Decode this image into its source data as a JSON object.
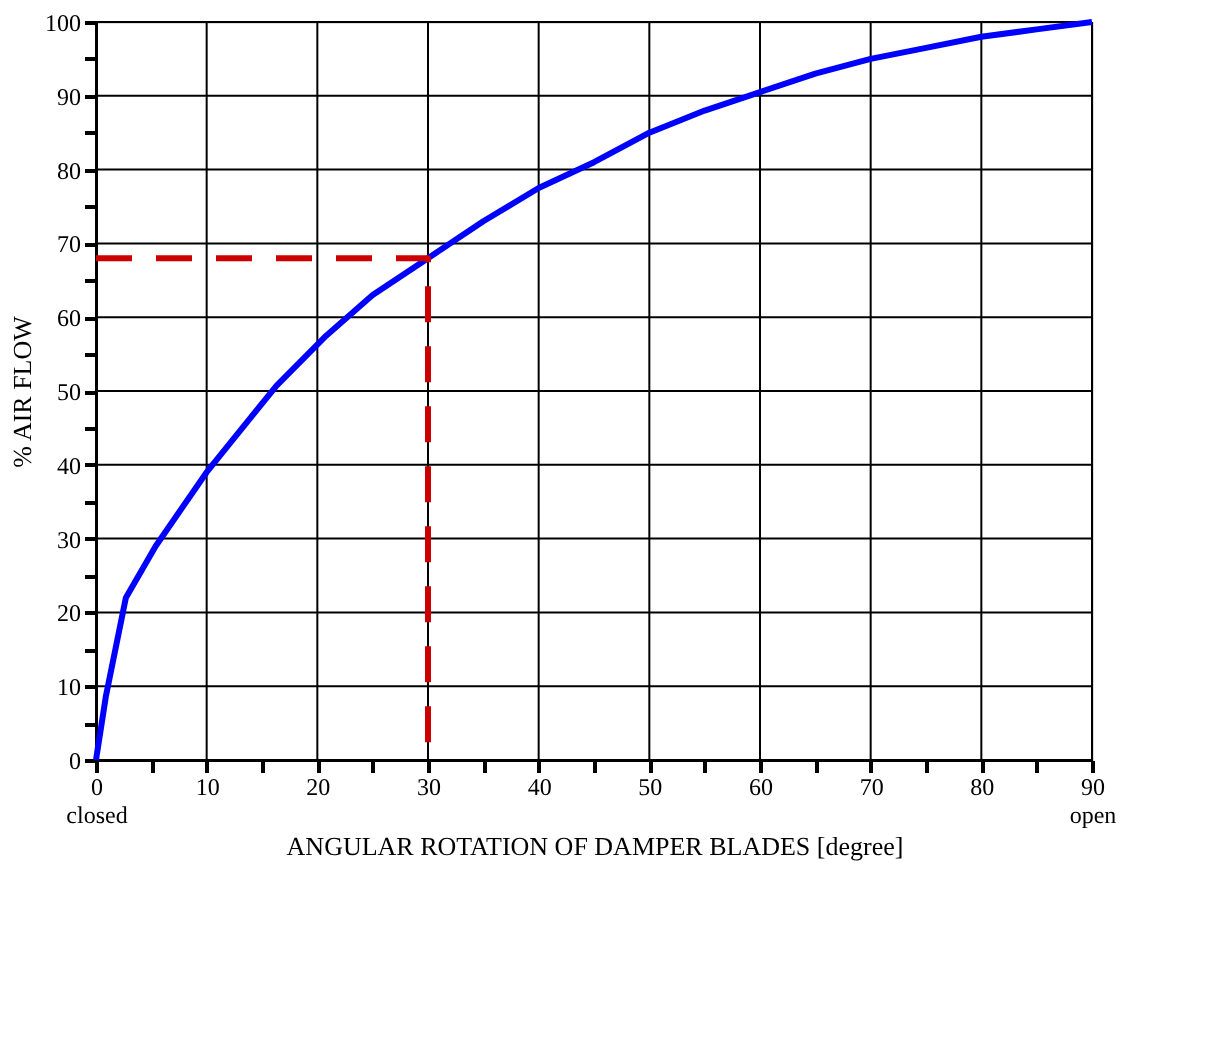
{
  "chart_data": {
    "type": "line",
    "xlabel": "ANGULAR ROTATION OF DAMPER BLADES [degree]",
    "ylabel": "% AIR FLOW",
    "xlim": [
      0,
      90
    ],
    "ylim": [
      0,
      100
    ],
    "xticks": [
      {
        "value": 0,
        "label": "0\nclosed"
      },
      {
        "value": 5,
        "label": null
      },
      10,
      {
        "value": 15,
        "label": null
      },
      20,
      {
        "value": 25,
        "label": null
      },
      30,
      {
        "value": 35,
        "label": null
      },
      40,
      {
        "value": 45,
        "label": null
      },
      50,
      {
        "value": 55,
        "label": null
      },
      60,
      {
        "value": 65,
        "label": null
      },
      70,
      {
        "value": 75,
        "label": null
      },
      80,
      {
        "value": 85,
        "label": null
      },
      {
        "value": 90,
        "label": "90\nopen"
      }
    ],
    "yticks": [
      0,
      {
        "value": 5,
        "label": null
      },
      10,
      {
        "value": 15,
        "label": null
      },
      20,
      {
        "value": 25,
        "label": null
      },
      30,
      {
        "value": 35,
        "label": null
      },
      40,
      {
        "value": 45,
        "label": null
      },
      50,
      {
        "value": 55,
        "label": null
      },
      60,
      {
        "value": 65,
        "label": null
      },
      70,
      {
        "value": 75,
        "label": null
      },
      80,
      {
        "value": 85,
        "label": null
      },
      90,
      {
        "value": 95,
        "label": null
      },
      100
    ],
    "grid": true,
    "marker": "none",
    "series": [
      {
        "color": "#0000ff",
        "line_style": "solid",
        "x": [
          0,
          0.9,
          2.7,
          5.4,
          10,
          16.3,
          20.8,
          25,
          30,
          35,
          40,
          45,
          50,
          55,
          60,
          65,
          70,
          75,
          80,
          85,
          90
        ],
        "values": [
          0,
          8.7,
          22,
          29,
          39,
          50.7,
          57.5,
          63,
          68,
          73,
          77.5,
          81,
          85,
          88,
          90.5,
          93,
          95,
          96.5,
          98,
          99,
          100
        ]
      },
      {
        "color": "#cc0000",
        "line_style": "dashed",
        "x": [
          0,
          30,
          30
        ],
        "values": [
          68,
          68,
          0
        ]
      }
    ]
  }
}
